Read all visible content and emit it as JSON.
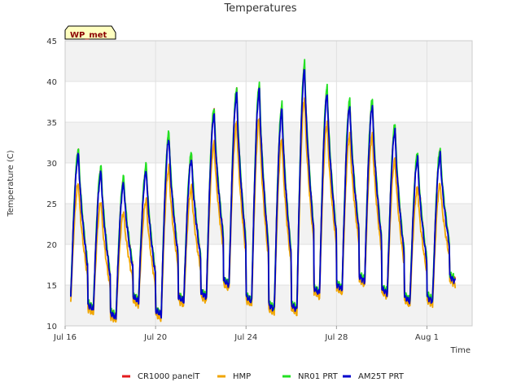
{
  "chart_data": {
    "type": "line",
    "title": "Temperatures",
    "xlabel": "Time",
    "ylabel": "Temperature (C)",
    "badge": "WP_met",
    "ylim": [
      10,
      45
    ],
    "xlim_days": [
      0,
      18
    ],
    "yticks": [
      10,
      15,
      20,
      25,
      30,
      35,
      40,
      45
    ],
    "xticks": [
      {
        "label": "Jul 16",
        "day": 0
      },
      {
        "label": "Jul 20",
        "day": 4
      },
      {
        "label": "Jul 24",
        "day": 8
      },
      {
        "label": "Jul 28",
        "day": 12
      },
      {
        "label": "Aug 1",
        "day": 16
      }
    ],
    "grid": true,
    "legend_position": "bottom",
    "daily_minmax": [
      {
        "day": 0,
        "min": 13.5,
        "max": 31.0
      },
      {
        "day": 1,
        "min": 12.0,
        "max": 28.8
      },
      {
        "day": 2,
        "min": 11.0,
        "max": 27.5
      },
      {
        "day": 3,
        "min": 13.0,
        "max": 29.0
      },
      {
        "day": 4,
        "min": 11.3,
        "max": 33.0
      },
      {
        "day": 5,
        "min": 13.0,
        "max": 30.5
      },
      {
        "day": 6,
        "min": 13.5,
        "max": 36.0
      },
      {
        "day": 7,
        "min": 15.0,
        "max": 38.5
      },
      {
        "day": 8,
        "min": 13.0,
        "max": 39.0
      },
      {
        "day": 9,
        "min": 12.0,
        "max": 36.5
      },
      {
        "day": 10,
        "min": 12.0,
        "max": 41.5
      },
      {
        "day": 11,
        "min": 14.0,
        "max": 38.5
      },
      {
        "day": 12,
        "min": 14.5,
        "max": 37.0
      },
      {
        "day": 13,
        "min": 15.5,
        "max": 37.0
      },
      {
        "day": 14,
        "min": 14.0,
        "max": 34.0
      },
      {
        "day": 15,
        "min": 13.0,
        "max": 30.5
      },
      {
        "day": 16,
        "min": 13.0,
        "max": 31.0
      },
      {
        "day": 17,
        "min": 15.5,
        "max": 15.5
      }
    ],
    "series": [
      {
        "name": "CR1000 panelT",
        "color": "#e31a1c",
        "max_offset": 0.4,
        "min_offset": 0.1
      },
      {
        "name": "HMP",
        "color": "#f0a500",
        "max_offset": -3.5,
        "min_offset": -0.5
      },
      {
        "name": "NR01 PRT",
        "color": "#22e022",
        "max_offset": 0.8,
        "min_offset": 0.3
      },
      {
        "name": "AM25T PRT",
        "color": "#0000cc",
        "max_offset": 0.0,
        "min_offset": 0.0
      }
    ]
  }
}
